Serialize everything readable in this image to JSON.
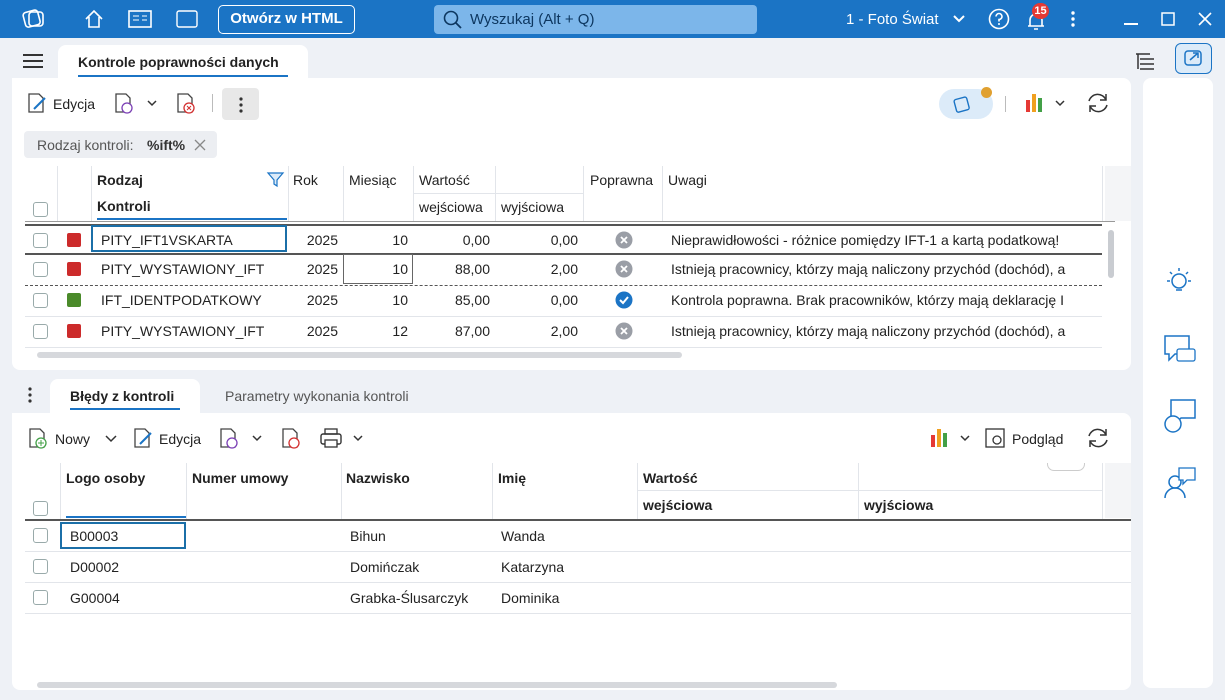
{
  "titlebar": {
    "open_html": "Otwórz w HTML",
    "search": "Wyszukaj (Alt + Q)",
    "company": "1 - Foto Świat",
    "notification_count": "15"
  },
  "main_tab": "Kontrole poprawności danych",
  "toolbar": {
    "edit": "Edycja"
  },
  "filter": {
    "label": "Rodzaj kontroli:",
    "value": "%ift%"
  },
  "controls_table": {
    "headers": {
      "type_line1": "Rodzaj",
      "type_line2": "Kontroli",
      "year": "Rok",
      "month": "Miesiąc",
      "value": "Wartość",
      "input": "wejściowa",
      "output": "wyjściowa",
      "valid": "Poprawna",
      "notes": "Uwagi"
    },
    "rows": [
      {
        "color": "#cc2b2b",
        "type": "PITY_IFT1VSKARTA",
        "year": "2025",
        "month": "10",
        "input": "0,00",
        "output": "0,00",
        "valid": false,
        "notes": "Nieprawidłowości - różnice pomiędzy IFT-1 a kartą podatkową!"
      },
      {
        "color": "#cc2b2b",
        "type": "PITY_WYSTAWIONY_IFT",
        "year": "2025",
        "month": "10",
        "input": "88,00",
        "output": "2,00",
        "valid": false,
        "notes": "Istnieją pracownicy, którzy mają naliczony przychód (dochód), a"
      },
      {
        "color": "#4a8a2a",
        "type": "IFT_IDENTPODATKOWY",
        "year": "2025",
        "month": "10",
        "input": "85,00",
        "output": "0,00",
        "valid": true,
        "notes": "Kontrola poprawna. Brak pracowników, którzy mają deklarację I"
      },
      {
        "color": "#cc2b2b",
        "type": "PITY_WYSTAWIONY_IFT",
        "year": "2025",
        "month": "12",
        "input": "87,00",
        "output": "2,00",
        "valid": false,
        "notes": "Istnieją pracownicy, którzy mają naliczony przychód (dochód), a"
      }
    ]
  },
  "lower_tabs": [
    "Błędy z kontroli",
    "Parametry wykonania kontroli"
  ],
  "lower_toolbar": {
    "new": "Nowy",
    "edit": "Edycja",
    "preview": "Podgląd"
  },
  "errors_table": {
    "headers": {
      "logo": "Logo osoby",
      "contract": "Numer umowy",
      "surname": "Nazwisko",
      "name": "Imię",
      "value": "Wartość",
      "input": "wejściowa",
      "output": "wyjściowa"
    },
    "rows": [
      {
        "logo": "B00003",
        "surname": "Bihun",
        "name": "Wanda"
      },
      {
        "logo": "D00002",
        "surname": "Domińczak",
        "name": "Katarzyna"
      },
      {
        "logo": "G00004",
        "surname": "Grabka-Ślusarczyk",
        "name": "Dominika"
      }
    ]
  }
}
